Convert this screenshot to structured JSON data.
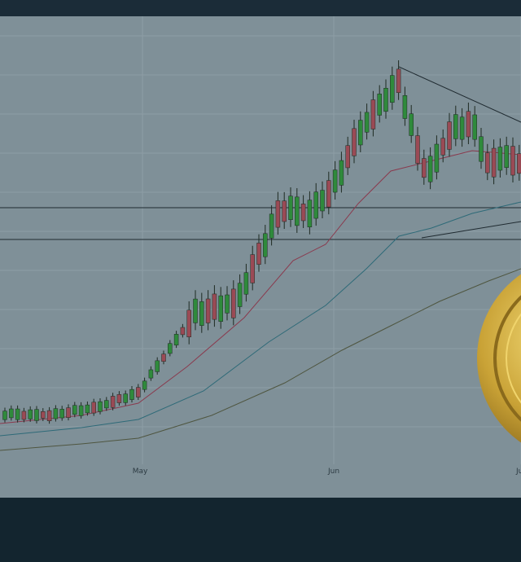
{
  "axis": {
    "labels": [
      "May",
      "Jun",
      "Ju"
    ]
  }
}
